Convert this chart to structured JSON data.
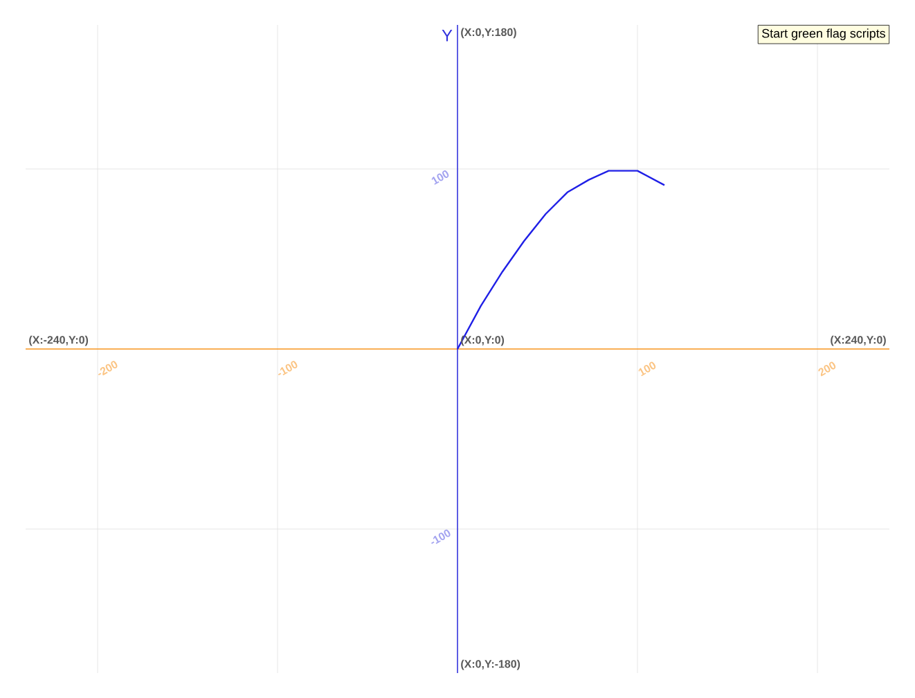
{
  "chart_data": {
    "type": "line",
    "ylabel": "Y",
    "xlim": [
      -240,
      240
    ],
    "ylim": [
      -180,
      180
    ],
    "xticks": [
      -200,
      -100,
      100,
      200
    ],
    "yticks": [
      -100,
      100
    ],
    "grid": true,
    "series": [
      {
        "color": "#1f1fe6",
        "x": [
          0,
          13,
          25,
          37,
          49,
          61,
          73,
          84,
          100,
          115
        ],
        "values": [
          0,
          24,
          43,
          60,
          75,
          87,
          94,
          99,
          99,
          91
        ]
      }
    ],
    "annotations": [
      "(X:0,Y:180)",
      "(X:-240,Y:0)",
      {
        "text": "(X:0,Y:0)",
        "x": 0,
        "y": 0
      },
      "(X:240,Y:0)",
      "(X:0,Y:-180)",
      "Start green flag scripts"
    ]
  }
}
